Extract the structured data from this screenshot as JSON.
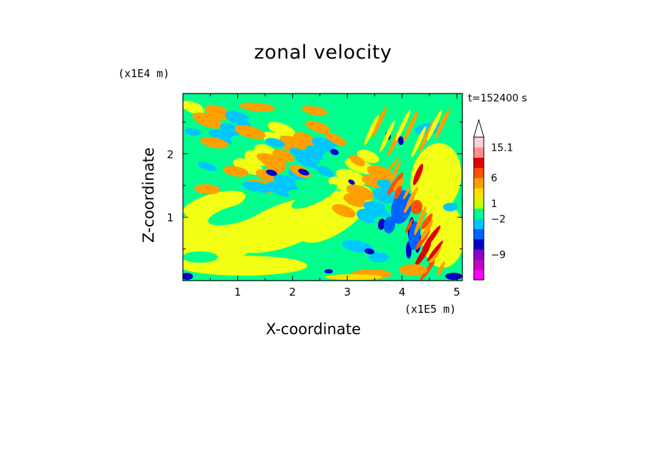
{
  "chart_data": {
    "type": "heatmap",
    "title": "zonal velocity",
    "xlabel": "X-coordinate",
    "ylabel": "Z-coordinate",
    "x_multiplier": "(x1E5 m)",
    "y_multiplier": "(x1E4 m)",
    "time_label": "t=152400 s",
    "xlim": [
      0,
      5.1
    ],
    "ylim": [
      0,
      2.95
    ],
    "x_ticks": [
      "1",
      "2",
      "3",
      "4",
      "5"
    ],
    "y_ticks": [
      "1",
      "2"
    ],
    "colorbar": {
      "tick_labels": [
        "15.1",
        "6",
        "1",
        "-2",
        "-9"
      ],
      "colors": [
        "#ff00ff",
        "#c800c8",
        "#8c00c8",
        "#0000c8",
        "#0064ff",
        "#00c8ff",
        "#00ff8c",
        "#c8ff00",
        "#ffe000",
        "#ffa000",
        "#ff5000",
        "#e00000",
        "#ff9090",
        "#ffd0d0"
      ]
    }
  }
}
